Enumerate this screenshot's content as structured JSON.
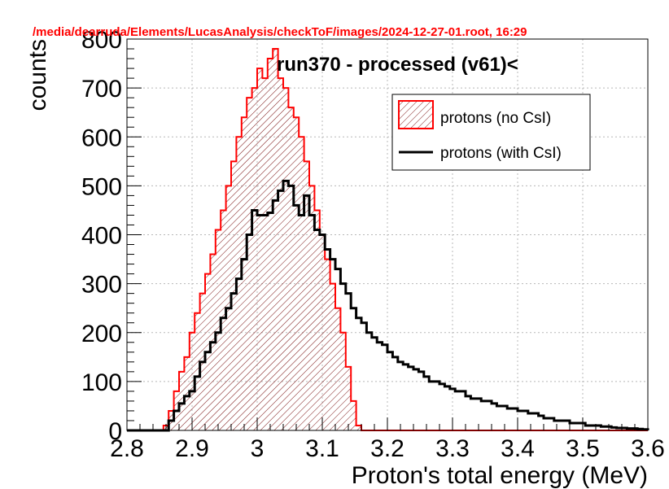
{
  "chart_data": {
    "type": "bar",
    "file_path": "/media/dearruda/Elements/LucasAnalysis/checkToF/images/2024-12-27-01.root,  16:29",
    "title": "run370 - processed (v61)<",
    "xlabel": "Proton's total energy (MeV)",
    "ylabel": "counts",
    "xlim": [
      2.8,
      3.6
    ],
    "ylim": [
      0,
      800
    ],
    "grid": true,
    "legend_placement": "top-right",
    "x_ticks": [
      "2.8",
      "2.9",
      "3",
      "3.1",
      "3.2",
      "3.3",
      "3.4",
      "3.5",
      "3.6"
    ],
    "y_ticks": [
      "0",
      "100",
      "200",
      "300",
      "400",
      "500",
      "600",
      "700",
      "800"
    ],
    "bin_start": 2.8,
    "bin_width": 0.008,
    "series": [
      {
        "name": "protons (no CsI)",
        "color": "#ff0000",
        "hatched": true,
        "values": [
          0,
          0,
          0,
          0,
          0,
          0,
          0,
          10,
          40,
          80,
          120,
          150,
          200,
          240,
          280,
          320,
          360,
          410,
          450,
          500,
          550,
          600,
          640,
          680,
          700,
          740,
          720,
          760,
          780,
          720,
          700,
          660,
          640,
          600,
          550,
          500,
          450,
          400,
          350,
          300,
          250,
          200,
          130,
          60,
          10,
          0,
          0,
          0,
          0,
          0,
          0,
          0,
          0,
          0,
          0,
          0,
          0,
          0,
          0,
          0,
          0,
          0,
          0,
          0,
          0,
          0,
          0,
          0,
          0,
          0,
          0,
          0,
          0,
          0,
          0,
          0,
          0,
          0,
          0,
          0,
          0,
          0,
          0,
          0,
          0,
          0,
          0,
          0,
          0,
          0,
          0,
          0,
          0,
          0,
          0,
          0,
          0,
          0,
          0,
          0
        ]
      },
      {
        "name": "protons (with CsI)",
        "color": "#000000",
        "hatched": false,
        "values": [
          0,
          0,
          0,
          0,
          0,
          0,
          0,
          0,
          20,
          40,
          55,
          70,
          80,
          110,
          140,
          160,
          180,
          200,
          230,
          250,
          280,
          310,
          350,
          400,
          450,
          440,
          440,
          445,
          470,
          490,
          510,
          500,
          460,
          440,
          480,
          440,
          410,
          400,
          370,
          350,
          330,
          300,
          280,
          250,
          230,
          220,
          200,
          190,
          180,
          175,
          160,
          150,
          140,
          135,
          130,
          125,
          120,
          110,
          100,
          100,
          95,
          90,
          85,
          80,
          80,
          70,
          65,
          65,
          60,
          60,
          55,
          50,
          50,
          45,
          45,
          40,
          40,
          35,
          35,
          30,
          25,
          25,
          20,
          20,
          20,
          15,
          15,
          15,
          10,
          10,
          10,
          8,
          8,
          6,
          5,
          5,
          4,
          4,
          3,
          2
        ]
      }
    ]
  }
}
